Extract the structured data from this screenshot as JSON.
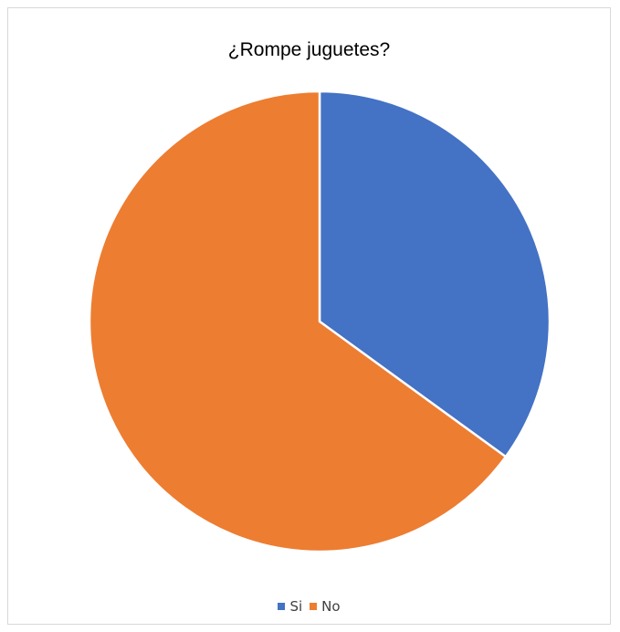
{
  "chart_data": {
    "type": "pie",
    "title": "¿Rompe juguetes?",
    "categories": [
      "Si",
      "No"
    ],
    "values": [
      35,
      65
    ],
    "colors": [
      "#4472C4",
      "#ED7D31"
    ],
    "legend_position": "bottom",
    "start_angle_deg": 0,
    "direction": "clockwise"
  }
}
